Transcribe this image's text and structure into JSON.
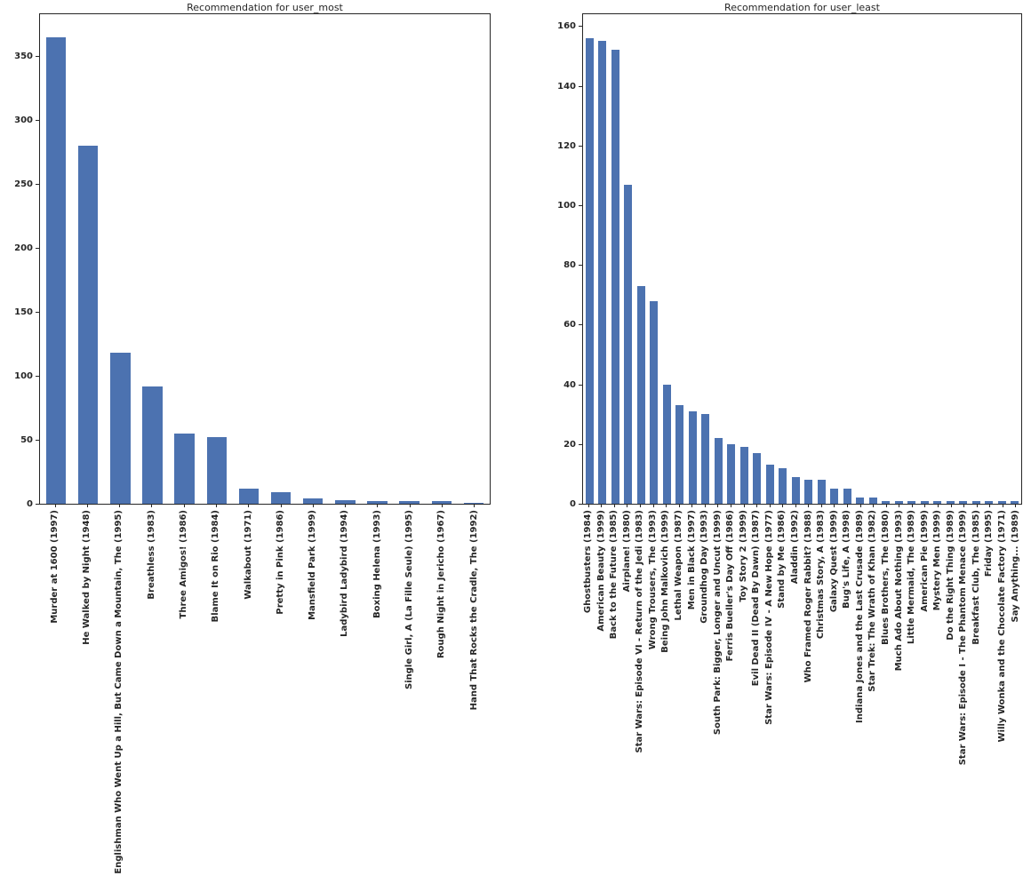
{
  "figure": {
    "background": "#ffffff",
    "bar_color": "#4c72b0",
    "text_color": "#262626",
    "axis_color": "#262626"
  },
  "chart_data": [
    {
      "type": "bar",
      "title": "Recommendation for user_most",
      "xlabel": "",
      "ylabel": "",
      "ylim": [
        0,
        383
      ],
      "yticks": [
        0,
        50,
        100,
        150,
        200,
        250,
        300,
        350
      ],
      "grid": false,
      "legend": false,
      "categories": [
        "Murder at 1600 (1997)",
        "He Walked by Night (1948)",
        "Englishman Who Went Up a Hill, But Came Down a Mountain, The (1995)",
        "Breathless (1983)",
        "Three Amigos! (1986)",
        "Blame It on Rio (1984)",
        "Walkabout (1971)",
        "Pretty in Pink (1986)",
        "Mansfield Park (1999)",
        "Ladybird Ladybird (1994)",
        "Boxing Helena (1993)",
        "Single Girl, A (La Fille Seule) (1995)",
        "Rough Night in Jericho (1967)",
        "Hand That Rocks the Cradle, The (1992)"
      ],
      "values": [
        365,
        280,
        118,
        92,
        55,
        52,
        12,
        9,
        4,
        3,
        2,
        2,
        2,
        1
      ]
    },
    {
      "type": "bar",
      "title": "Recommendation for user_least",
      "xlabel": "",
      "ylabel": "",
      "ylim": [
        0,
        164
      ],
      "yticks": [
        0,
        20,
        40,
        60,
        80,
        100,
        120,
        140,
        160
      ],
      "grid": false,
      "legend": false,
      "categories": [
        "Ghostbusters (1984)",
        "American Beauty (1999)",
        "Back to the Future (1985)",
        "Airplane! (1980)",
        "Star Wars: Episode VI - Return of the Jedi (1983)",
        "Wrong Trousers, The (1993)",
        "Being John Malkovich (1999)",
        "Lethal Weapon (1987)",
        "Men in Black (1997)",
        "Groundhog Day (1993)",
        "South Park: Bigger, Longer and Uncut (1999)",
        "Ferris Bueller's Day Off (1986)",
        "Toy Story 2 (1999)",
        "Evil Dead II (Dead By Dawn) (1987)",
        "Star Wars: Episode IV - A New Hope (1977)",
        "Stand by Me (1986)",
        "Aladdin (1992)",
        "Who Framed Roger Rabbit? (1988)",
        "Christmas Story, A (1983)",
        "Galaxy Quest (1999)",
        "Bug's Life, A (1998)",
        "Indiana Jones and the Last Crusade (1989)",
        "Star Trek: The Wrath of Khan (1982)",
        "Blues Brothers, The (1980)",
        "Much Ado About Nothing (1993)",
        "Little Mermaid, The (1989)",
        "American Pie (1999)",
        "Mystery Men (1999)",
        "Do the Right Thing (1989)",
        "Star Wars: Episode I - The Phantom Menace (1999)",
        "Breakfast Club, The (1985)",
        "Friday (1995)",
        "Willy Wonka and the Chocolate Factory (1971)",
        "Say Anything... (1989)"
      ],
      "values": [
        156,
        155,
        152,
        107,
        73,
        68,
        40,
        33,
        31,
        30,
        22,
        20,
        19,
        17,
        13,
        12,
        9,
        8,
        8,
        5,
        5,
        2,
        2,
        1,
        1,
        1,
        1,
        1,
        1,
        1,
        1,
        1,
        1,
        1
      ]
    }
  ]
}
